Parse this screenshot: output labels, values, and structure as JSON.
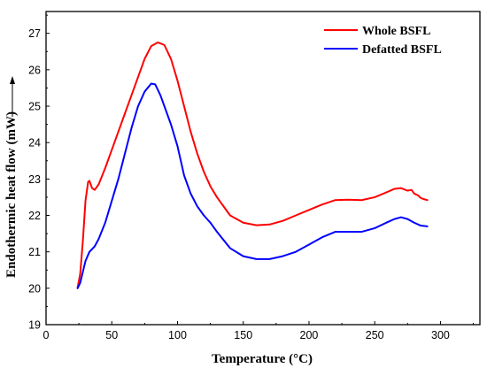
{
  "chart_data": {
    "type": "line",
    "title": "",
    "xlabel": "Temperature (°C)",
    "ylabel": "Endothermic heat flow (mW)",
    "xlim": [
      0,
      330
    ],
    "ylim": [
      19,
      27.6
    ],
    "xticks": [
      0,
      50,
      100,
      150,
      200,
      250,
      300
    ],
    "yticks": [
      19,
      20,
      21,
      22,
      23,
      24,
      25,
      26,
      27
    ],
    "grid": false,
    "legend_position": "top-right",
    "series": [
      {
        "name": "Whole BSFL",
        "color": "#ff0000",
        "points": [
          [
            24,
            20.02
          ],
          [
            26,
            20.4
          ],
          [
            28,
            21.3
          ],
          [
            30,
            22.4
          ],
          [
            32,
            22.92
          ],
          [
            33,
            22.95
          ],
          [
            35,
            22.75
          ],
          [
            37,
            22.7
          ],
          [
            40,
            22.85
          ],
          [
            45,
            23.3
          ],
          [
            50,
            23.8
          ],
          [
            55,
            24.3
          ],
          [
            60,
            24.8
          ],
          [
            65,
            25.3
          ],
          [
            70,
            25.8
          ],
          [
            75,
            26.3
          ],
          [
            80,
            26.65
          ],
          [
            85,
            26.75
          ],
          [
            90,
            26.68
          ],
          [
            95,
            26.3
          ],
          [
            100,
            25.7
          ],
          [
            105,
            25.0
          ],
          [
            110,
            24.3
          ],
          [
            115,
            23.7
          ],
          [
            120,
            23.2
          ],
          [
            125,
            22.8
          ],
          [
            130,
            22.5
          ],
          [
            140,
            22.0
          ],
          [
            150,
            21.8
          ],
          [
            160,
            21.73
          ],
          [
            170,
            21.75
          ],
          [
            180,
            21.85
          ],
          [
            190,
            22.0
          ],
          [
            200,
            22.15
          ],
          [
            210,
            22.3
          ],
          [
            220,
            22.42
          ],
          [
            230,
            22.43
          ],
          [
            240,
            22.42
          ],
          [
            250,
            22.5
          ],
          [
            260,
            22.65
          ],
          [
            265,
            22.73
          ],
          [
            270,
            22.75
          ],
          [
            275,
            22.68
          ],
          [
            278,
            22.7
          ],
          [
            280,
            22.6
          ],
          [
            283,
            22.55
          ],
          [
            285,
            22.48
          ],
          [
            287,
            22.45
          ],
          [
            290,
            22.42
          ]
        ]
      },
      {
        "name": "Defatted BSFL",
        "color": "#0000ff",
        "points": [
          [
            24,
            20.0
          ],
          [
            26,
            20.15
          ],
          [
            28,
            20.45
          ],
          [
            30,
            20.75
          ],
          [
            33,
            21.0
          ],
          [
            37,
            21.15
          ],
          [
            40,
            21.35
          ],
          [
            45,
            21.8
          ],
          [
            50,
            22.4
          ],
          [
            55,
            23.0
          ],
          [
            60,
            23.7
          ],
          [
            65,
            24.4
          ],
          [
            70,
            25.0
          ],
          [
            75,
            25.4
          ],
          [
            80,
            25.62
          ],
          [
            83,
            25.6
          ],
          [
            87,
            25.3
          ],
          [
            90,
            25.0
          ],
          [
            95,
            24.5
          ],
          [
            100,
            23.9
          ],
          [
            105,
            23.1
          ],
          [
            110,
            22.6
          ],
          [
            115,
            22.25
          ],
          [
            120,
            22.0
          ],
          [
            125,
            21.8
          ],
          [
            130,
            21.55
          ],
          [
            140,
            21.1
          ],
          [
            150,
            20.88
          ],
          [
            160,
            20.8
          ],
          [
            170,
            20.8
          ],
          [
            180,
            20.88
          ],
          [
            190,
            21.0
          ],
          [
            200,
            21.2
          ],
          [
            210,
            21.4
          ],
          [
            220,
            21.55
          ],
          [
            230,
            21.55
          ],
          [
            240,
            21.55
          ],
          [
            250,
            21.65
          ],
          [
            260,
            21.82
          ],
          [
            265,
            21.9
          ],
          [
            270,
            21.95
          ],
          [
            275,
            21.9
          ],
          [
            280,
            21.8
          ],
          [
            285,
            21.72
          ],
          [
            290,
            21.7
          ]
        ]
      }
    ]
  }
}
